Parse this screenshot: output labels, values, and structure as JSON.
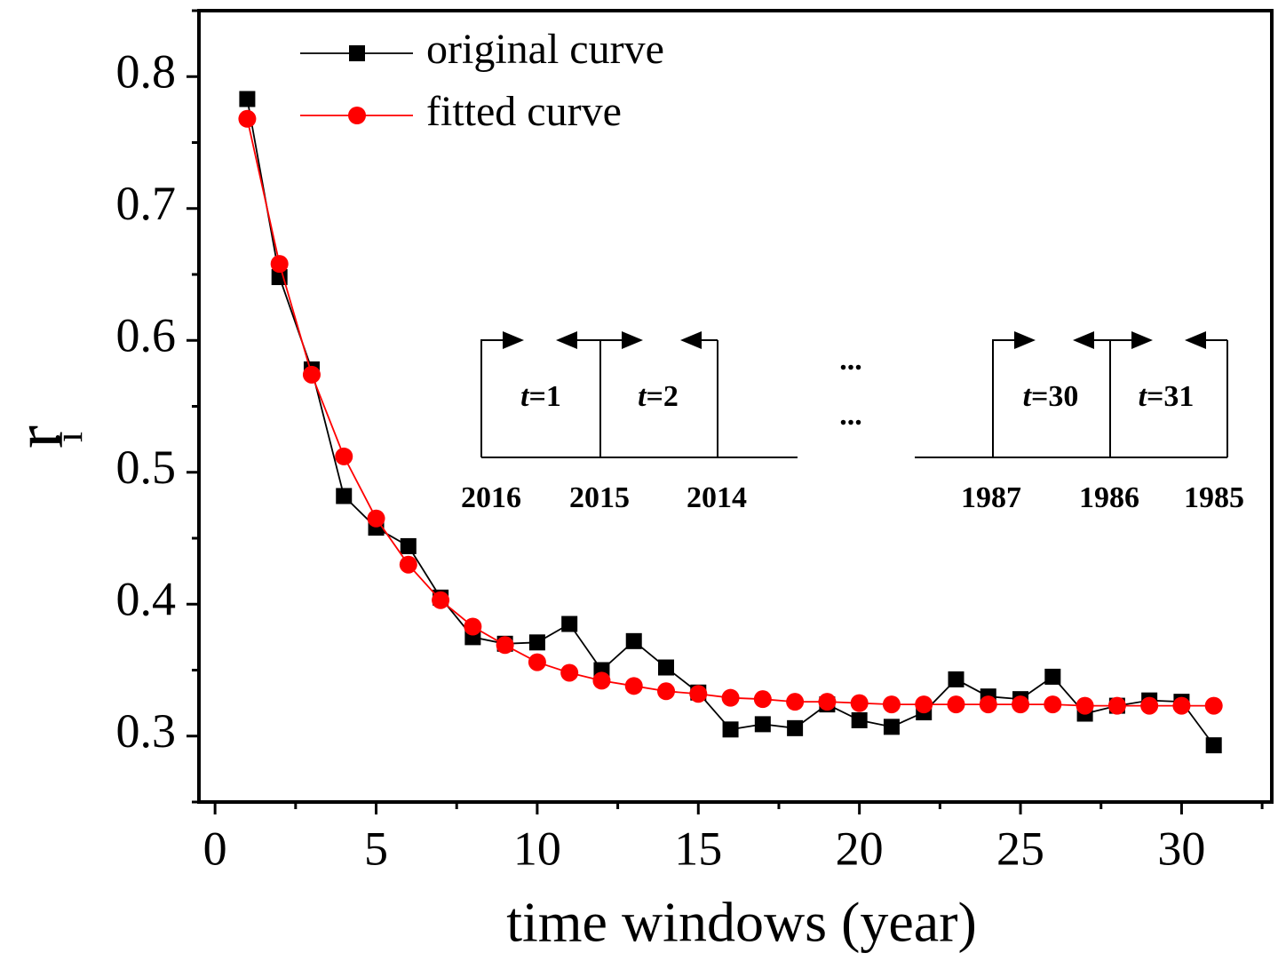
{
  "chart_data": {
    "type": "line",
    "xlabel": "time windows (year)",
    "ylabel": "r",
    "ylabel_sub": "i",
    "x": [
      1,
      2,
      3,
      4,
      5,
      6,
      7,
      8,
      9,
      10,
      11,
      12,
      13,
      14,
      15,
      16,
      17,
      18,
      19,
      20,
      21,
      22,
      23,
      24,
      25,
      26,
      27,
      28,
      29,
      30,
      31
    ],
    "series": [
      {
        "name": "original curve",
        "color": "#000000",
        "marker": "square",
        "values": [
          0.783,
          0.648,
          0.578,
          0.482,
          0.458,
          0.444,
          0.405,
          0.375,
          0.37,
          0.371,
          0.385,
          0.35,
          0.372,
          0.352,
          0.333,
          0.305,
          0.309,
          0.306,
          0.324,
          0.312,
          0.307,
          0.318,
          0.343,
          0.33,
          0.328,
          0.345,
          0.317,
          0.323,
          0.327,
          0.326,
          0.293
        ]
      },
      {
        "name": "fitted curve",
        "color": "#ff0000",
        "marker": "circle",
        "values": [
          0.768,
          0.658,
          0.574,
          0.512,
          0.465,
          0.43,
          0.403,
          0.383,
          0.369,
          0.356,
          0.348,
          0.342,
          0.338,
          0.334,
          0.332,
          0.329,
          0.328,
          0.326,
          0.326,
          0.325,
          0.324,
          0.324,
          0.324,
          0.324,
          0.324,
          0.324,
          0.323,
          0.323,
          0.323,
          0.323,
          0.323
        ]
      }
    ],
    "xlim": [
      -0.5,
      32.8
    ],
    "ylim": [
      0.25,
      0.85
    ],
    "xticks": [
      0,
      5,
      10,
      15,
      20,
      25,
      30
    ],
    "yticks": [
      0.3,
      0.4,
      0.5,
      0.6,
      0.7,
      0.8
    ],
    "xticks_minor": [
      2.5,
      7.5,
      12.5,
      17.5,
      22.5,
      27.5,
      32.5
    ],
    "yticks_minor": [
      0.25,
      0.35,
      0.45,
      0.55,
      0.65,
      0.75,
      0.85
    ],
    "legend": "upper left",
    "inset": {
      "windows": [
        "t=1",
        "t=2",
        "t=30",
        "t=31"
      ],
      "ellipsis": [
        "...",
        "..."
      ],
      "years": [
        "2016",
        "2015",
        "2014",
        "1987",
        "1986",
        "1985"
      ]
    }
  }
}
